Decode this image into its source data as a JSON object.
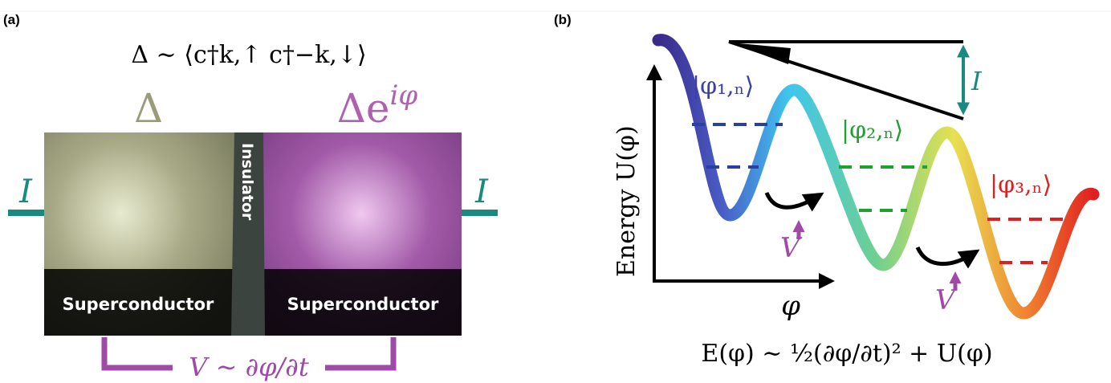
{
  "panel_a": {
    "label": "(a)",
    "pair_amplitude": "Δ ∼ ⟨c†k,↑ c†−k,↓⟩",
    "left_gap": "Δ",
    "right_gap": {
      "base": "Δe",
      "sup": "iφ"
    },
    "left_current": "I",
    "right_current": "I",
    "insulator": "Insulator",
    "left_material": "Superconductor",
    "right_material": "Superconductor",
    "voltage": "V ∼ ∂φ/∂t"
  },
  "panel_b": {
    "label": "(b)",
    "states": [
      "|φ₁,ₙ⟩",
      "|φ₂,ₙ⟩",
      "|φ₃,ₙ⟩"
    ],
    "current": "I",
    "y_axis": "Energy U(φ)",
    "x_axis": "φ",
    "voltages": [
      "V",
      "V"
    ],
    "energy": "E(φ) ∼ ½(∂φ/∂t)² + U(φ)"
  }
}
